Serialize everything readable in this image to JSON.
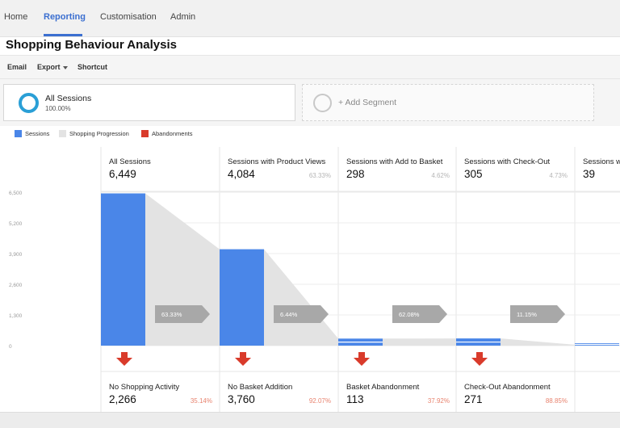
{
  "nav": {
    "tabs": [
      {
        "label": "Home"
      },
      {
        "label": "Reporting"
      },
      {
        "label": "Customisation"
      },
      {
        "label": "Admin"
      }
    ],
    "active_tab": "Reporting"
  },
  "page_title": "Shopping Behaviour Analysis",
  "toolbar": {
    "email_label": "Email",
    "export_label": "Export",
    "shortcut_label": "Shortcut"
  },
  "segments": {
    "active": {
      "name": "All Sessions",
      "percent": "100.00%",
      "color": "#2a9fd6"
    },
    "add_label": "+ Add Segment"
  },
  "legend": [
    {
      "label": "Sessions",
      "color": "#4a86e8"
    },
    {
      "label": "Shopping Progression",
      "color": "#e3e3e3"
    },
    {
      "label": "Abandonments",
      "color": "#d93b2b"
    }
  ],
  "chart_data": {
    "type": "bar",
    "y_ticks": [
      "6,500",
      "5,200",
      "3,900",
      "2,600",
      "1,300",
      "0"
    ],
    "ylim": [
      0,
      6500
    ],
    "stages": [
      {
        "name": "All Sessions",
        "sessions": 6449,
        "sessions_label": "6,449",
        "pct": "",
        "progression_pct": "63.33%",
        "abandon_name": "No Shopping Activity",
        "abandon_value": "2,266",
        "abandon_pct": "35.14%"
      },
      {
        "name": "Sessions with Product Views",
        "sessions": 4084,
        "sessions_label": "4,084",
        "pct": "63.33%",
        "progression_pct": "6.44%",
        "abandon_name": "No Basket Addition",
        "abandon_value": "3,760",
        "abandon_pct": "92.07%"
      },
      {
        "name": "Sessions with Add to Basket",
        "sessions": 298,
        "sessions_label": "298",
        "pct": "4.62%",
        "progression_pct": "62.08%",
        "abandon_name": "Basket Abandonment",
        "abandon_value": "113",
        "abandon_pct": "37.92%"
      },
      {
        "name": "Sessions with Check-Out",
        "sessions": 305,
        "sessions_label": "305",
        "pct": "4.73%",
        "progression_pct": "11.15%",
        "abandon_name": "Check-Out Abandonment",
        "abandon_value": "271",
        "abandon_pct": "88.85%"
      },
      {
        "name": "Sessions w",
        "sessions": 39,
        "sessions_label": "39",
        "pct": "",
        "progression_pct": "",
        "abandon_name": "",
        "abandon_value": "",
        "abandon_pct": ""
      }
    ],
    "colors": {
      "bar": "#4a86e8",
      "progression": "#e3e3e3",
      "arrow": "#a8a8a8",
      "abandon": "#d93b2b",
      "pct_text": "#e8836f"
    }
  }
}
